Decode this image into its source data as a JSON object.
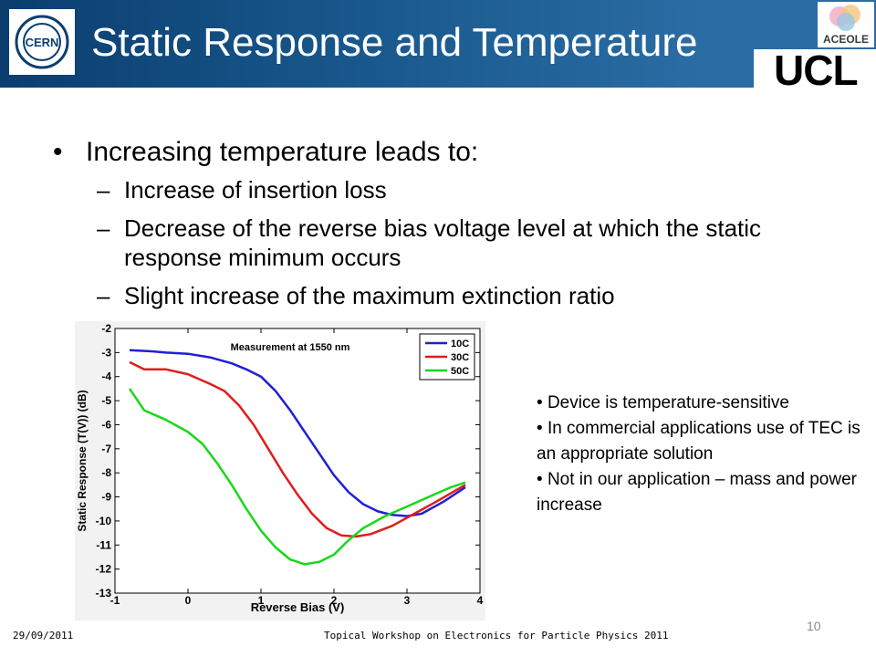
{
  "header": {
    "title": "Static Response and Temperature",
    "logos": {
      "cern": "CERN",
      "aceole": "ACEOLE",
      "ucl": "UCL"
    },
    "colors": {
      "bar": "#1a5a8f"
    }
  },
  "main_bullet": "Increasing temperature leads to:",
  "sub_bullets": [
    "Increase of insertion loss",
    "Decrease of the reverse bias voltage level at which the static response minimum occurs",
    "Slight increase of the maximum extinction ratio"
  ],
  "side_notes": [
    "Device is temperature-sensitive",
    "In commercial applications use of TEC is an appropriate solution",
    "Not in our application – mass and power increase"
  ],
  "chart_data": {
    "type": "line",
    "title": "Measurement at 1550 nm",
    "xlabel": "Reverse Bias (V)",
    "ylabel": "Static Response (T(V)) (dB)",
    "xlim": [
      -1,
      4
    ],
    "ylim": [
      -13,
      -2
    ],
    "xticks": [
      "-1",
      "0",
      "1",
      "2",
      "3",
      "4"
    ],
    "yticks": [
      "-2",
      "-3",
      "-4",
      "-5",
      "-6",
      "-7",
      "-8",
      "-9",
      "-10",
      "-11",
      "-12",
      "-13"
    ],
    "grid": false,
    "legend_position": "top-right",
    "series": [
      {
        "name": "10C",
        "color": "#1f1fd6",
        "x": [
          -0.8,
          -0.5,
          -0.3,
          0.0,
          0.3,
          0.6,
          0.8,
          1.0,
          1.2,
          1.4,
          1.6,
          1.8,
          2.0,
          2.2,
          2.4,
          2.6,
          2.8,
          3.0,
          3.2,
          3.5,
          3.8
        ],
        "y": [
          -2.9,
          -2.95,
          -3.0,
          -3.05,
          -3.2,
          -3.45,
          -3.7,
          -4.0,
          -4.6,
          -5.4,
          -6.3,
          -7.2,
          -8.1,
          -8.8,
          -9.3,
          -9.6,
          -9.75,
          -9.8,
          -9.7,
          -9.2,
          -8.6
        ]
      },
      {
        "name": "30C",
        "color": "#e01c1c",
        "x": [
          -0.8,
          -0.6,
          -0.3,
          0.0,
          0.3,
          0.5,
          0.7,
          0.9,
          1.1,
          1.3,
          1.5,
          1.7,
          1.9,
          2.1,
          2.3,
          2.5,
          2.8,
          3.1,
          3.4,
          3.8
        ],
        "y": [
          -3.4,
          -3.7,
          -3.7,
          -3.9,
          -4.3,
          -4.6,
          -5.2,
          -6.0,
          -7.0,
          -8.0,
          -8.9,
          -9.7,
          -10.3,
          -10.6,
          -10.65,
          -10.55,
          -10.2,
          -9.7,
          -9.2,
          -8.5
        ]
      },
      {
        "name": "50C",
        "color": "#18d818",
        "x": [
          -0.8,
          -0.6,
          -0.3,
          0.0,
          0.2,
          0.4,
          0.6,
          0.8,
          1.0,
          1.2,
          1.4,
          1.6,
          1.8,
          2.0,
          2.2,
          2.4,
          2.7,
          3.0,
          3.3,
          3.6,
          3.8
        ],
        "y": [
          -4.5,
          -5.4,
          -5.8,
          -6.3,
          -6.8,
          -7.6,
          -8.5,
          -9.5,
          -10.4,
          -11.1,
          -11.6,
          -11.8,
          -11.7,
          -11.4,
          -10.8,
          -10.3,
          -9.8,
          -9.4,
          -9.0,
          -8.6,
          -8.4
        ]
      }
    ]
  },
  "footer": {
    "date": "29/09/2011",
    "event": "Topical Workshop on Electronics for Particle Physics 2011",
    "page": "10"
  }
}
